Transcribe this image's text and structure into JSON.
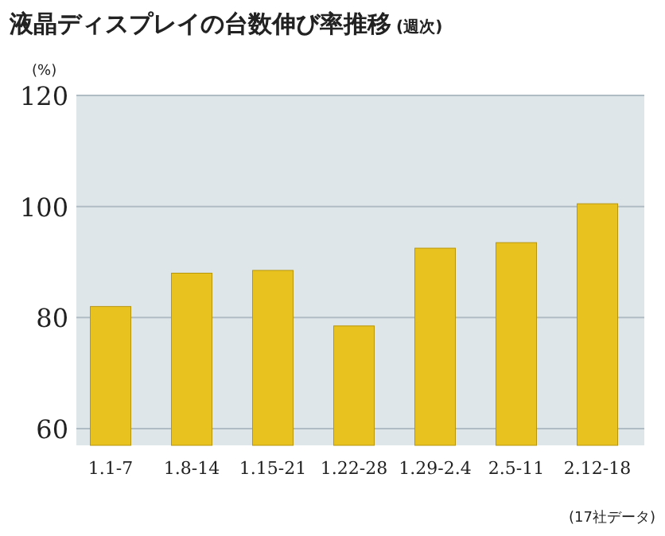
{
  "chart_data": {
    "type": "bar",
    "title": "液晶ディスプレイの台数伸び率推移",
    "subtitle": "(週次)",
    "ylabel": "(%)",
    "categories": [
      "1.1-7",
      "1.8-14",
      "1.15-21",
      "1.22-28",
      "1.29-2.4",
      "2.5-11",
      "2.12-18"
    ],
    "values": [
      82,
      88,
      88.5,
      78.5,
      92.5,
      93.5,
      100.5
    ],
    "color": "#e8c21e",
    "ylim": [
      57,
      120
    ],
    "yticks": [
      60,
      80,
      100,
      120
    ],
    "grid": "y",
    "annotations": [
      "(17社データ)"
    ]
  }
}
